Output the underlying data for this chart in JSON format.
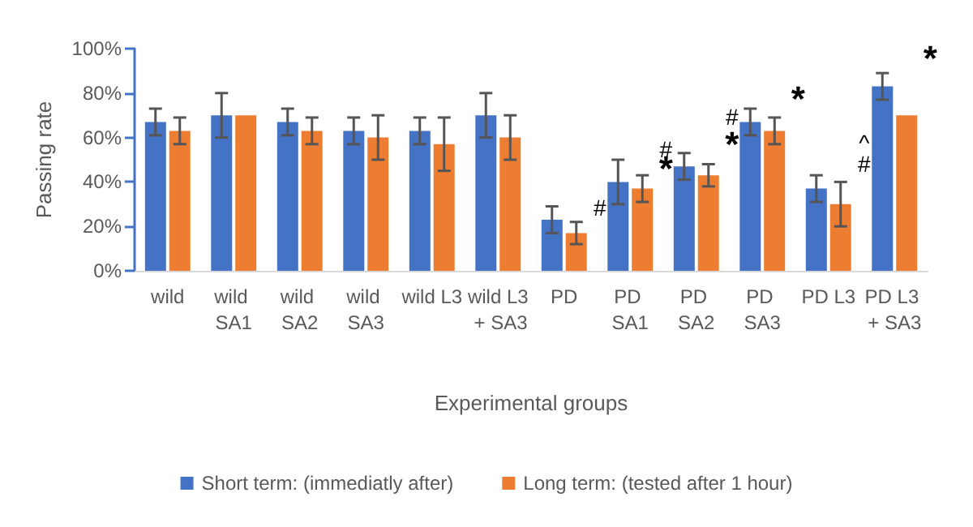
{
  "chart_data": {
    "type": "bar",
    "xlabel": "Experimental groups",
    "ylabel": "Passing rate",
    "categories": [
      "wild",
      "wild SA1",
      "wild SA2",
      "wild SA3",
      "wild L3",
      "wild L3 + SA3",
      "PD",
      "PD SA1",
      "PD SA2",
      "PD SA3",
      "PD L3",
      "PD L3 + SA3"
    ],
    "series": [
      {
        "name": "Short term: (immediatly after)",
        "color": "#4472c4",
        "values": [
          67,
          70,
          67,
          63,
          63,
          70,
          23,
          40,
          47,
          67,
          37,
          83
        ],
        "errors": [
          6,
          10,
          6,
          6,
          6,
          10,
          6,
          10,
          6,
          6,
          6,
          6
        ]
      },
      {
        "name": "Long term: (tested after 1 hour)",
        "color": "#ed7d31",
        "values": [
          63,
          70,
          63,
          60,
          57,
          60,
          17,
          37,
          43,
          63,
          30,
          70
        ],
        "errors": [
          6,
          null,
          6,
          10,
          12,
          10,
          5,
          6,
          5,
          6,
          10,
          null
        ]
      }
    ],
    "ylim": [
      0,
      100
    ],
    "yticks": [
      {
        "value": 0,
        "label": "0%"
      },
      {
        "value": 20,
        "label": "20%"
      },
      {
        "value": 40,
        "label": "40%"
      },
      {
        "value": 60,
        "label": "60%"
      },
      {
        "value": 80,
        "label": "80%"
      },
      {
        "value": 100,
        "label": "100%"
      }
    ],
    "grid": false,
    "legend": "bottom",
    "annotations": [
      "#",
      "#",
      "*",
      "#",
      "*",
      "*",
      "^",
      "#",
      "*"
    ]
  }
}
